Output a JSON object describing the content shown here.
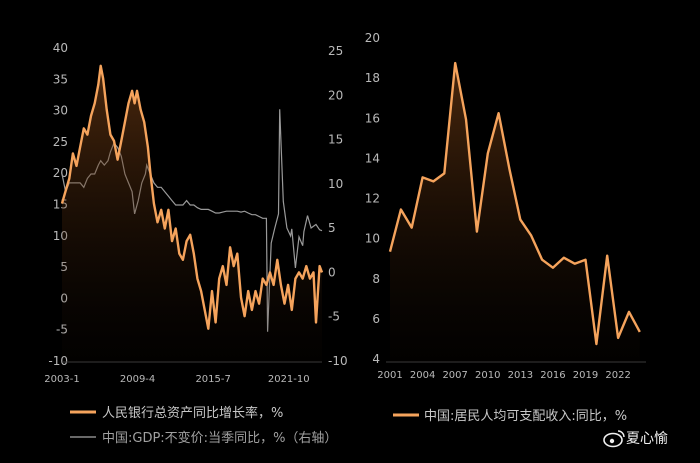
{
  "chart_data": [
    {
      "type": "line",
      "title": "",
      "x_tick_labels": [
        "2003-1",
        "2009-4",
        "2015-7",
        "2021-10"
      ],
      "x_range": [
        2003.0,
        2024.5
      ],
      "y_left": {
        "ticks": [
          "40",
          "35",
          "30",
          "25",
          "20",
          "15",
          "10",
          "5",
          "0",
          "-5",
          "-10"
        ],
        "range": [
          -10,
          40
        ]
      },
      "y_right": {
        "ticks": [
          "25",
          "20",
          "15",
          "10",
          "5",
          "0",
          "-5",
          "-10"
        ],
        "range": [
          -10,
          25
        ]
      },
      "series": [
        {
          "name": "人民银行总资产同比增长率，%",
          "axis": "left",
          "color": "#f5a35c",
          "fill": true,
          "points": [
            [
              2003.0,
              15
            ],
            [
              2003.3,
              17
            ],
            [
              2003.6,
              19
            ],
            [
              2003.9,
              23
            ],
            [
              2004.2,
              21
            ],
            [
              2004.5,
              24
            ],
            [
              2004.8,
              27
            ],
            [
              2005.1,
              26
            ],
            [
              2005.4,
              29
            ],
            [
              2005.7,
              31
            ],
            [
              2006.0,
              34
            ],
            [
              2006.2,
              37
            ],
            [
              2006.4,
              35
            ],
            [
              2006.7,
              30
            ],
            [
              2007.0,
              26
            ],
            [
              2007.3,
              25
            ],
            [
              2007.6,
              22
            ],
            [
              2007.9,
              25
            ],
            [
              2008.2,
              28
            ],
            [
              2008.5,
              31
            ],
            [
              2008.8,
              33
            ],
            [
              2009.0,
              31
            ],
            [
              2009.2,
              33
            ],
            [
              2009.5,
              30
            ],
            [
              2009.8,
              28
            ],
            [
              2010.1,
              24
            ],
            [
              2010.3,
              20
            ],
            [
              2010.6,
              15
            ],
            [
              2010.9,
              12
            ],
            [
              2011.2,
              14
            ],
            [
              2011.5,
              11
            ],
            [
              2011.8,
              14
            ],
            [
              2012.1,
              9
            ],
            [
              2012.4,
              11
            ],
            [
              2012.7,
              7
            ],
            [
              2013.0,
              6
            ],
            [
              2013.3,
              9
            ],
            [
              2013.6,
              10
            ],
            [
              2013.9,
              7
            ],
            [
              2014.2,
              3
            ],
            [
              2014.5,
              1
            ],
            [
              2014.8,
              -2
            ],
            [
              2015.1,
              -5
            ],
            [
              2015.4,
              1
            ],
            [
              2015.7,
              -4
            ],
            [
              2016.0,
              3
            ],
            [
              2016.3,
              5
            ],
            [
              2016.6,
              2
            ],
            [
              2016.9,
              8
            ],
            [
              2017.2,
              5
            ],
            [
              2017.5,
              7
            ],
            [
              2017.8,
              0
            ],
            [
              2018.1,
              -3
            ],
            [
              2018.4,
              1
            ],
            [
              2018.7,
              -2
            ],
            [
              2019.0,
              1
            ],
            [
              2019.3,
              -1
            ],
            [
              2019.6,
              3
            ],
            [
              2019.9,
              2
            ],
            [
              2020.2,
              4
            ],
            [
              2020.5,
              2
            ],
            [
              2020.8,
              6
            ],
            [
              2021.1,
              2
            ],
            [
              2021.4,
              -1
            ],
            [
              2021.7,
              2
            ],
            [
              2022.0,
              -2
            ],
            [
              2022.3,
              3
            ],
            [
              2022.6,
              4
            ],
            [
              2022.9,
              3
            ],
            [
              2023.2,
              5
            ],
            [
              2023.5,
              3
            ],
            [
              2023.8,
              4
            ],
            [
              2024.0,
              -4
            ],
            [
              2024.3,
              5
            ],
            [
              2024.5,
              4
            ]
          ]
        },
        {
          "name": "中国:GDP:不变价:当季同比，%（右轴）",
          "axis": "right",
          "color": "#9a9a9a",
          "fill": false,
          "points": [
            [
              2003.0,
              11
            ],
            [
              2003.3,
              9
            ],
            [
              2003.6,
              10
            ],
            [
              2003.9,
              10
            ],
            [
              2004.2,
              10
            ],
            [
              2004.5,
              10
            ],
            [
              2004.8,
              9.5
            ],
            [
              2005.1,
              10.5
            ],
            [
              2005.4,
              11
            ],
            [
              2005.7,
              11
            ],
            [
              2006.0,
              12
            ],
            [
              2006.2,
              12.5
            ],
            [
              2006.5,
              12
            ],
            [
              2006.8,
              12.5
            ],
            [
              2007.0,
              13.5
            ],
            [
              2007.3,
              14.5
            ],
            [
              2007.6,
              14
            ],
            [
              2007.9,
              13
            ],
            [
              2008.2,
              11
            ],
            [
              2008.5,
              10
            ],
            [
              2008.8,
              9
            ],
            [
              2009.0,
              6.5
            ],
            [
              2009.3,
              8
            ],
            [
              2009.6,
              10
            ],
            [
              2009.9,
              11
            ],
            [
              2010.0,
              12
            ],
            [
              2010.3,
              11
            ],
            [
              2010.6,
              10
            ],
            [
              2010.9,
              9.5
            ],
            [
              2011.2,
              9.5
            ],
            [
              2011.5,
              9
            ],
            [
              2011.8,
              8.5
            ],
            [
              2012.1,
              8
            ],
            [
              2012.4,
              7.5
            ],
            [
              2012.7,
              7.5
            ],
            [
              2013.0,
              7.5
            ],
            [
              2013.3,
              8
            ],
            [
              2013.6,
              7.5
            ],
            [
              2013.9,
              7.5
            ],
            [
              2014.2,
              7.2
            ],
            [
              2014.5,
              7
            ],
            [
              2014.8,
              7
            ],
            [
              2015.1,
              7
            ],
            [
              2015.4,
              6.8
            ],
            [
              2015.7,
              6.6
            ],
            [
              2016.0,
              6.6
            ],
            [
              2016.3,
              6.7
            ],
            [
              2016.6,
              6.8
            ],
            [
              2016.9,
              6.8
            ],
            [
              2017.2,
              6.8
            ],
            [
              2017.5,
              6.8
            ],
            [
              2017.8,
              6.7
            ],
            [
              2018.1,
              6.8
            ],
            [
              2018.4,
              6.6
            ],
            [
              2018.7,
              6.4
            ],
            [
              2019.0,
              6.4
            ],
            [
              2019.3,
              6.2
            ],
            [
              2019.6,
              6
            ],
            [
              2019.9,
              6
            ],
            [
              2020.0,
              -6.8
            ],
            [
              2020.3,
              3.2
            ],
            [
              2020.6,
              4.9
            ],
            [
              2020.9,
              6.5
            ],
            [
              2021.0,
              18.3
            ],
            [
              2021.3,
              7.9
            ],
            [
              2021.6,
              4.9
            ],
            [
              2021.9,
              4
            ],
            [
              2022.0,
              4.8
            ],
            [
              2022.3,
              0.4
            ],
            [
              2022.6,
              3.9
            ],
            [
              2022.9,
              2.9
            ],
            [
              2023.0,
              4.5
            ],
            [
              2023.3,
              6.3
            ],
            [
              2023.6,
              4.9
            ],
            [
              2023.9,
              5.2
            ],
            [
              2024.0,
              5.3
            ],
            [
              2024.3,
              4.7
            ],
            [
              2024.5,
              4.6
            ]
          ]
        }
      ],
      "legend": "bottom"
    },
    {
      "type": "line",
      "title": "",
      "x_ticks": [
        "2001",
        "2004",
        "2007",
        "2010",
        "2013",
        "2016",
        "2019",
        "2022"
      ],
      "x_range": [
        2001,
        2024.2
      ],
      "y_ticks": [
        "20",
        "18",
        "16",
        "14",
        "12",
        "10",
        "8",
        "6",
        "4"
      ],
      "y_range": [
        4,
        20
      ],
      "series": [
        {
          "name": "中国:居民人均可支配收入:同比，%",
          "color": "#f5a35c",
          "fill": true,
          "x": [
            2001,
            2002,
            2003,
            2004,
            2005,
            2006,
            2007,
            2008,
            2009,
            2010,
            2011,
            2012,
            2013,
            2014,
            2015,
            2016,
            2017,
            2018,
            2019,
            2020,
            2021,
            2022,
            2023,
            2024
          ],
          "y": [
            9.3,
            11.4,
            10.5,
            13.0,
            12.8,
            13.2,
            18.7,
            15.9,
            10.3,
            14.2,
            16.2,
            13.4,
            10.9,
            10.1,
            8.9,
            8.5,
            9.0,
            8.7,
            8.9,
            4.7,
            9.1,
            5.0,
            6.3,
            5.3
          ]
        }
      ],
      "legend": "bottom"
    }
  ],
  "legend": {
    "left": [
      {
        "label": "人民银行总资产同比增长率，%",
        "color": "#f5a35c"
      },
      {
        "label": "中国:GDP:不变价:当季同比，%（右轴）",
        "color": "#8a8a8a"
      }
    ],
    "right": [
      {
        "label": "中国:居民人均可支配收入:同比，%",
        "color": "#f5a35c"
      }
    ]
  },
  "watermark": {
    "text": "夏心愉",
    "icon": "weibo-icon"
  }
}
